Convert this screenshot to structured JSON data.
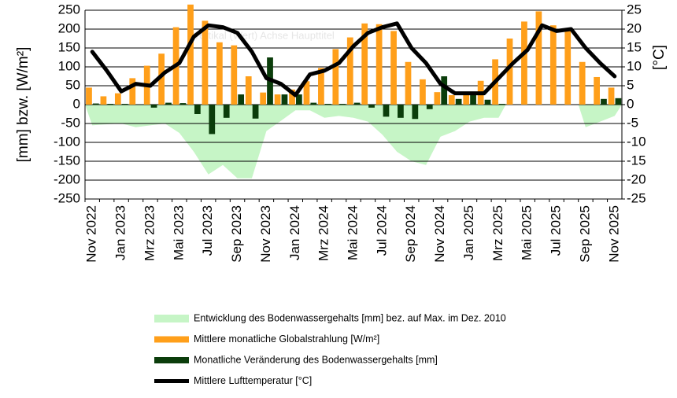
{
  "chart_data": {
    "type": "combo",
    "annotation": "Vertikal (Wert) Achse Haupttitel",
    "y_label": "[mm] bzw. [W/m²]",
    "y2_label": "[°C]",
    "categories": [
      "Nov 2022",
      null,
      "Jan 2023",
      null,
      "Mrz 2023",
      null,
      "Mai 2023",
      null,
      "Jul 2023",
      null,
      "Sep 2023",
      null,
      "Nov 2023",
      null,
      "Jan 2024",
      null,
      "Mrz 2024",
      null,
      "Mai 2024",
      null,
      "Jul 2024",
      null,
      "Sep 2024",
      null,
      "Nov 2024",
      null,
      "Jan 2025",
      null,
      "Mrz 2025",
      null,
      "Mai 2025",
      null,
      "Jul 2025",
      null,
      "Sep 2025",
      null,
      "Nov 2025"
    ],
    "ylim": [
      -250,
      250
    ],
    "yticks": [
      -250,
      -200,
      -150,
      -100,
      -50,
      0,
      50,
      100,
      150,
      200,
      250
    ],
    "y2lim": [
      -25,
      25
    ],
    "y2ticks": [
      -25,
      -20,
      -15,
      -10,
      -5,
      0,
      5,
      10,
      15,
      20,
      25
    ],
    "grid": true,
    "series": [
      {
        "name": "Entwicklung des Bodenwassergehalts [mm] bez. auf Max. im Dez. 2010",
        "type": "area",
        "color": "#c6f5c6",
        "values": [
          -55,
          -52,
          -50,
          -60,
          -55,
          -50,
          -75,
          -125,
          -185,
          -160,
          -195,
          -195,
          -70,
          -43,
          -15,
          -15,
          -35,
          -30,
          -35,
          -45,
          -80,
          -125,
          -150,
          -160,
          -85,
          -70,
          -45,
          -35,
          -35,
          null,
          null,
          null,
          null,
          null,
          -60,
          -45,
          -30
        ]
      },
      {
        "name": "Mittlere monatliche Globalstrahlung [W/m²]",
        "type": "bar",
        "color": "#ff9f1a",
        "values": [
          45,
          22,
          30,
          70,
          103,
          135,
          205,
          265,
          222,
          165,
          157,
          75,
          32,
          27,
          40,
          62,
          97,
          147,
          178,
          215,
          213,
          195,
          113,
          67,
          33,
          25,
          27,
          63,
          120,
          175,
          220,
          247,
          210,
          197,
          113,
          73,
          45
        ]
      },
      {
        "name": "Monatliche Veränderung des Bodenwassergehalts [mm]",
        "type": "bar",
        "color": "#0b3d0b",
        "values": [
          3,
          2,
          2,
          0,
          -8,
          5,
          4,
          -25,
          -78,
          -35,
          27,
          -37,
          125,
          27,
          27,
          5,
          2,
          2,
          5,
          -8,
          -32,
          -35,
          -38,
          -12,
          75,
          15,
          27,
          13,
          2,
          0,
          0,
          0,
          0,
          0,
          0,
          15,
          17
        ]
      },
      {
        "name": "Mittlere Lufttemperatur [°C]",
        "type": "line",
        "axis": "y2",
        "color": "#000000",
        "values": [
          14,
          9,
          3.5,
          5.5,
          5,
          8.5,
          11,
          18,
          21,
          20.5,
          19,
          14,
          7,
          5.5,
          2.5,
          8,
          9,
          11,
          15.5,
          19,
          20.5,
          21.5,
          15,
          11,
          5.5,
          3,
          3,
          3,
          7,
          11,
          14.5,
          21,
          19.5,
          20,
          15,
          11,
          7.5
        ]
      }
    ]
  }
}
